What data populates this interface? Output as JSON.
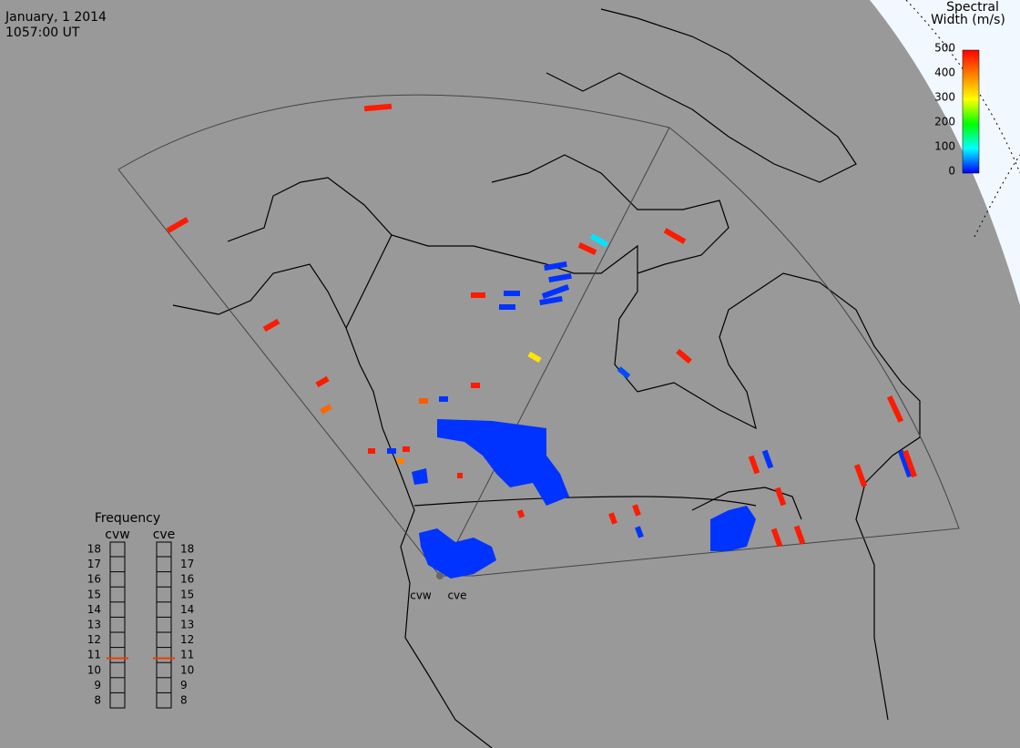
{
  "header": {
    "date": "January, 1 2014",
    "time": "1057:00 UT"
  },
  "colorbar": {
    "title": [
      "Spectral",
      "Width (m/s)"
    ],
    "lim": [
      0,
      500
    ],
    "ticks": [
      0,
      100,
      200,
      300,
      400,
      500
    ]
  },
  "frequency": {
    "title": "Frequency",
    "lim": [
      8,
      18
    ],
    "ticks": [
      8,
      9,
      10,
      11,
      12,
      13,
      14,
      15,
      16,
      17,
      18
    ],
    "radars": [
      {
        "name": "cvw",
        "value": 10.8
      },
      {
        "name": "cve",
        "value": 10.8
      }
    ]
  },
  "stations": [
    "cvw",
    "cve"
  ],
  "echoes": [
    480,
    480,
    480,
    480,
    420,
    480,
    20,
    20,
    20,
    20,
    20,
    20,
    480,
    90,
    480,
    480,
    30,
    320,
    480,
    430,
    20,
    480,
    480,
    20,
    480,
    480,
    20,
    480,
    480,
    20,
    480,
    480,
    400,
    480,
    480,
    480,
    480,
    120,
    20,
    480,
    20,
    20,
    20,
    20
  ]
}
